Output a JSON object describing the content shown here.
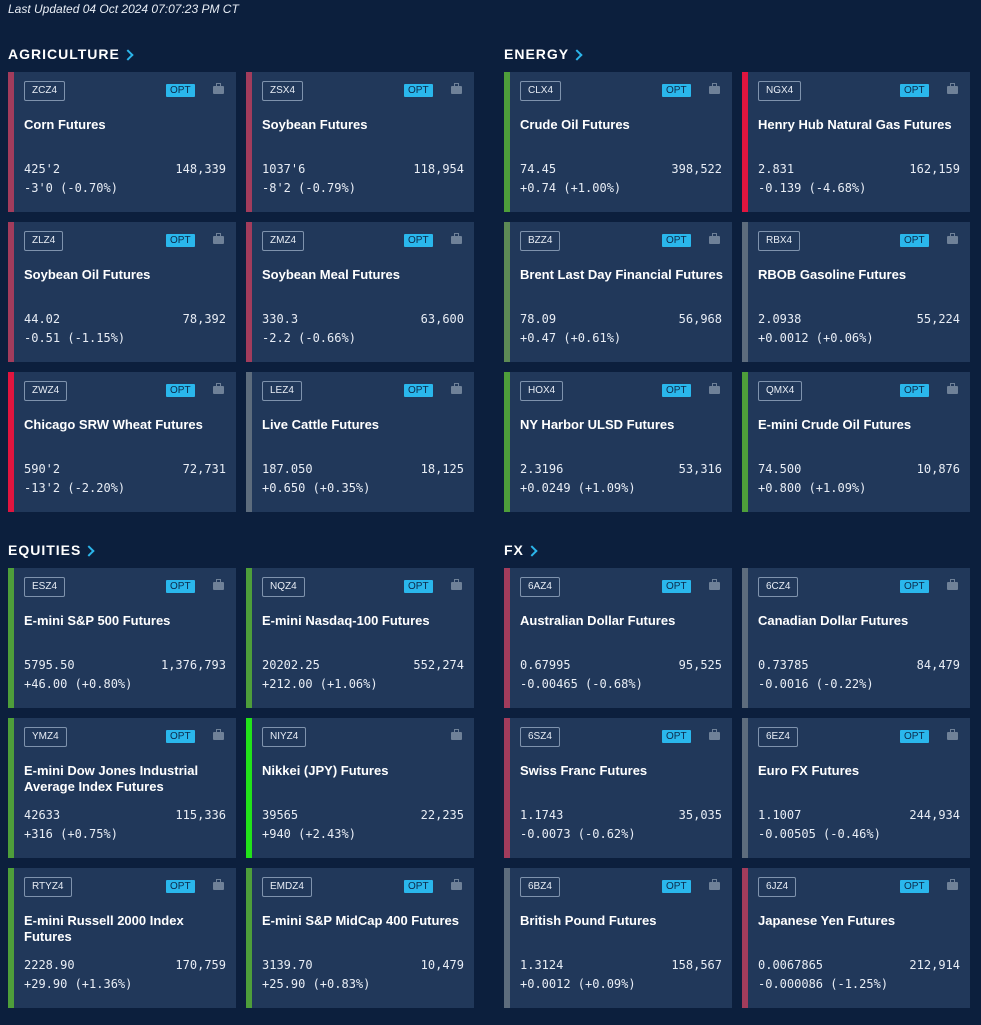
{
  "last_updated": "Last Updated 04 Oct 2024 07:07:23 PM CT",
  "colors": {
    "down": "#a23c5c",
    "up": "#4e9e3a",
    "strong_down": "#e0153f",
    "strong_up": "#22e21a",
    "flat": "#5d6c7d",
    "accent": "#2ab7ec"
  },
  "icons": {
    "briefcase": "briefcase-icon",
    "chevron": "chevron-right-icon"
  },
  "sections": [
    {
      "title": "AGRICULTURE",
      "cards": [
        {
          "code": "ZCZ4",
          "opt": "OPT",
          "name": "Corn Futures",
          "price": "425'2",
          "volume": "148,339",
          "change": "-3'0 (-0.70%)",
          "color": "#a23c5c"
        },
        {
          "code": "ZSX4",
          "opt": "OPT",
          "name": "Soybean Futures",
          "price": "1037'6",
          "volume": "118,954",
          "change": "-8'2 (-0.79%)",
          "color": "#a23c5c"
        },
        {
          "code": "ZLZ4",
          "opt": "OPT",
          "name": "Soybean Oil Futures",
          "price": "44.02",
          "volume": "78,392",
          "change": "-0.51 (-1.15%)",
          "color": "#a23c5c"
        },
        {
          "code": "ZMZ4",
          "opt": "OPT",
          "name": "Soybean Meal Futures",
          "price": "330.3",
          "volume": "63,600",
          "change": "-2.2 (-0.66%)",
          "color": "#a23c5c"
        },
        {
          "code": "ZWZ4",
          "opt": "OPT",
          "name": "Chicago SRW Wheat Futures",
          "price": "590'2",
          "volume": "72,731",
          "change": "-13'2 (-2.20%)",
          "color": "#e0153f"
        },
        {
          "code": "LEZ4",
          "opt": "OPT",
          "name": "Live Cattle Futures",
          "price": "187.050",
          "volume": "18,125",
          "change": "+0.650 (+0.35%)",
          "color": "#5d6c7d"
        }
      ]
    },
    {
      "title": "ENERGY",
      "cards": [
        {
          "code": "CLX4",
          "opt": "OPT",
          "name": "Crude Oil Futures",
          "price": "74.45",
          "volume": "398,522",
          "change": "+0.74 (+1.00%)",
          "color": "#4e9e3a"
        },
        {
          "code": "NGX4",
          "opt": "OPT",
          "name": "Henry Hub Natural Gas Futures",
          "price": "2.831",
          "volume": "162,159",
          "change": "-0.139 (-4.68%)",
          "color": "#e0153f"
        },
        {
          "code": "BZZ4",
          "opt": "OPT",
          "name": "Brent Last Day Financial Futures",
          "price": "78.09",
          "volume": "56,968",
          "change": "+0.47 (+0.61%)",
          "color": "#5d8a55"
        },
        {
          "code": "RBX4",
          "opt": "OPT",
          "name": "RBOB Gasoline Futures",
          "price": "2.0938",
          "volume": "55,224",
          "change": "+0.0012 (+0.06%)",
          "color": "#5d6c7d"
        },
        {
          "code": "HOX4",
          "opt": "OPT",
          "name": "NY Harbor ULSD Futures",
          "price": "2.3196",
          "volume": "53,316",
          "change": "+0.0249 (+1.09%)",
          "color": "#4e9e3a"
        },
        {
          "code": "QMX4",
          "opt": "OPT",
          "name": "E-mini Crude Oil Futures",
          "price": "74.500",
          "volume": "10,876",
          "change": "+0.800 (+1.09%)",
          "color": "#4e9e3a"
        }
      ]
    },
    {
      "title": "EQUITIES",
      "cards": [
        {
          "code": "ESZ4",
          "opt": "OPT",
          "name": "E-mini S&P 500 Futures",
          "price": "5795.50",
          "volume": "1,376,793",
          "change": "+46.00 (+0.80%)",
          "color": "#4e9e3a"
        },
        {
          "code": "NQZ4",
          "opt": "OPT",
          "name": "E-mini Nasdaq-100 Futures",
          "price": "20202.25",
          "volume": "552,274",
          "change": "+212.00 (+1.06%)",
          "color": "#4e9e3a"
        },
        {
          "code": "YMZ4",
          "opt": "OPT",
          "name": "E-mini Dow Jones Industrial Average Index Futures",
          "price": "42633",
          "volume": "115,336",
          "change": "+316 (+0.75%)",
          "color": "#4e9e3a"
        },
        {
          "code": "NIYZ4",
          "opt": "",
          "name": "Nikkei (JPY) Futures",
          "price": "39565",
          "volume": "22,235",
          "change": "+940 (+2.43%)",
          "color": "#22e21a"
        },
        {
          "code": "RTYZ4",
          "opt": "OPT",
          "name": "E-mini  Russell 2000 Index Futures",
          "price": "2228.90",
          "volume": "170,759",
          "change": "+29.90 (+1.36%)",
          "color": "#4e9e3a"
        },
        {
          "code": "EMDZ4",
          "opt": "OPT",
          "name": "E-mini S&P MidCap 400 Futures",
          "price": "3139.70",
          "volume": "10,479",
          "change": "+25.90 (+0.83%)",
          "color": "#4e9e3a"
        }
      ]
    },
    {
      "title": "FX",
      "cards": [
        {
          "code": "6AZ4",
          "opt": "OPT",
          "name": "Australian Dollar Futures",
          "price": "0.67995",
          "volume": "95,525",
          "change": "-0.00465 (-0.68%)",
          "color": "#a23c5c"
        },
        {
          "code": "6CZ4",
          "opt": "OPT",
          "name": "Canadian Dollar Futures",
          "price": "0.73785",
          "volume": "84,479",
          "change": "-0.0016 (-0.22%)",
          "color": "#5d6c7d"
        },
        {
          "code": "6SZ4",
          "opt": "OPT",
          "name": "Swiss Franc Futures",
          "price": "1.1743",
          "volume": "35,035",
          "change": "-0.0073 (-0.62%)",
          "color": "#a23c5c"
        },
        {
          "code": "6EZ4",
          "opt": "OPT",
          "name": "Euro FX Futures",
          "price": "1.1007",
          "volume": "244,934",
          "change": "-0.00505 (-0.46%)",
          "color": "#5d6c7d"
        },
        {
          "code": "6BZ4",
          "opt": "OPT",
          "name": "British Pound Futures",
          "price": "1.3124",
          "volume": "158,567",
          "change": "+0.0012 (+0.09%)",
          "color": "#5d6c7d"
        },
        {
          "code": "6JZ4",
          "opt": "OPT",
          "name": "Japanese Yen Futures",
          "price": "0.0067865",
          "volume": "212,914",
          "change": "-0.000086 (-1.25%)",
          "color": "#a23c5c"
        }
      ]
    }
  ]
}
